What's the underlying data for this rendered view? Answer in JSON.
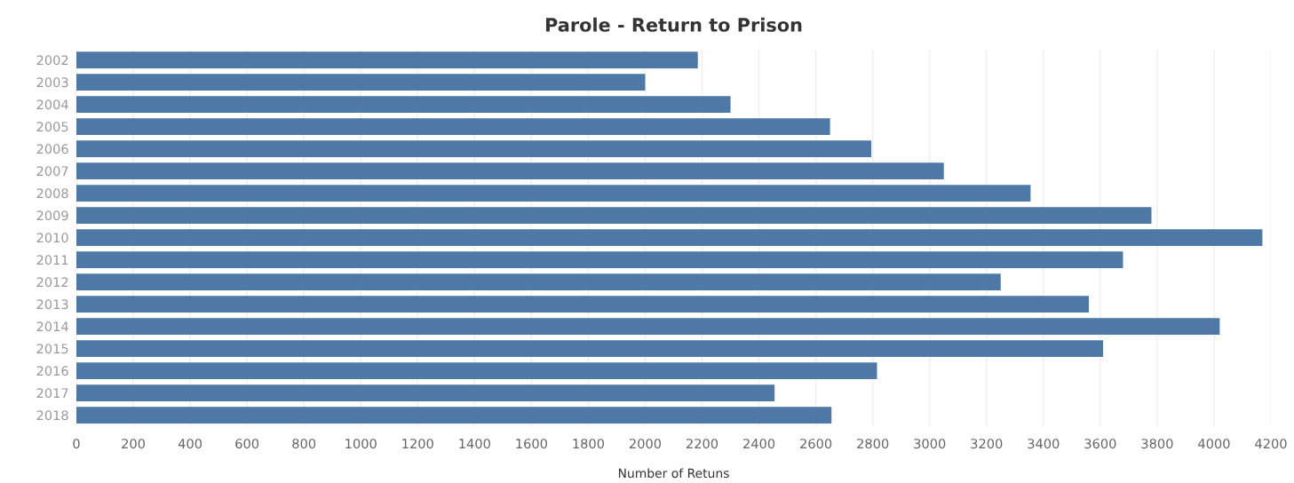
{
  "chart_data": {
    "type": "bar",
    "orientation": "horizontal",
    "title": "Parole - Return to Prison",
    "xlabel": "Number of Retuns",
    "categories": [
      "2002",
      "2003",
      "2004",
      "2005",
      "2006",
      "2007",
      "2008",
      "2009",
      "2010",
      "2011",
      "2012",
      "2013",
      "2014",
      "2015",
      "2016",
      "2017",
      "2018"
    ],
    "values": [
      2185,
      2000,
      2300,
      2650,
      2795,
      3050,
      3355,
      3780,
      4170,
      3680,
      3250,
      3560,
      4020,
      3610,
      2815,
      2455,
      2655
    ],
    "color": "#4e79a7",
    "xlim": [
      0,
      4200
    ],
    "xticks": [
      0,
      200,
      400,
      600,
      800,
      1000,
      1200,
      1400,
      1600,
      1800,
      2000,
      2200,
      2400,
      2600,
      2800,
      3000,
      3200,
      3400,
      3600,
      3800,
      4000,
      4200
    ],
    "grid": "x",
    "legend": false
  }
}
